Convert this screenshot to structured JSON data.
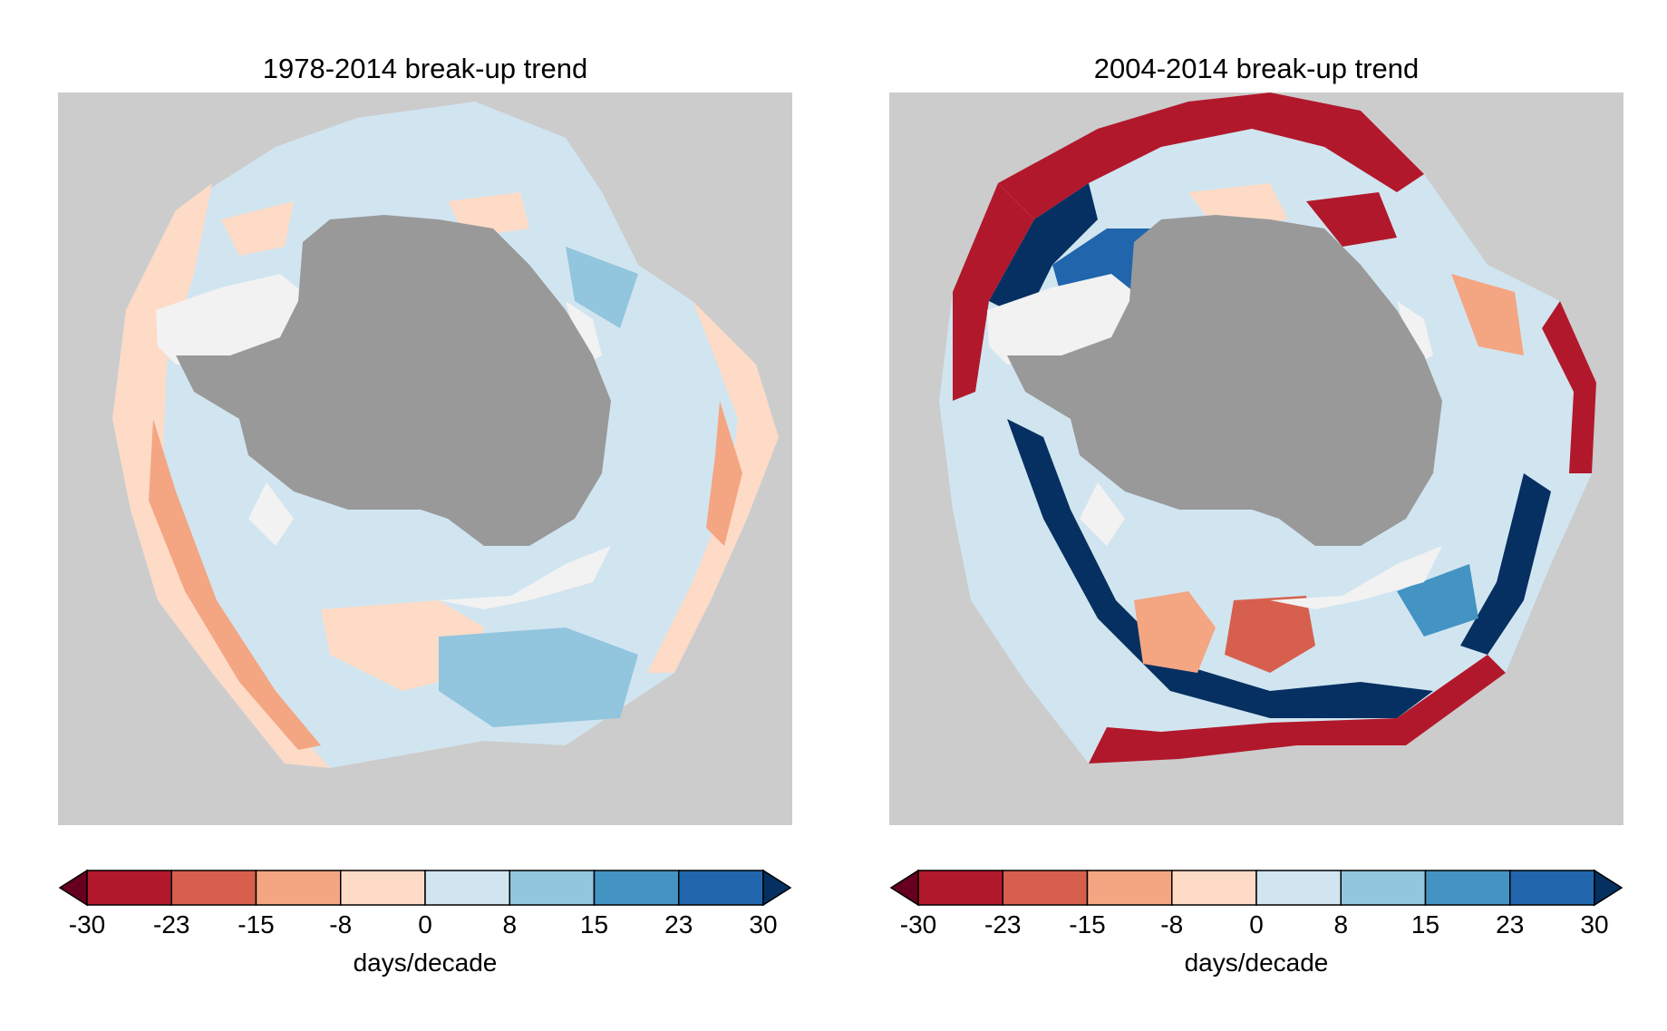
{
  "colorbar": {
    "ticks": [
      "-30",
      "-23",
      "-15",
      "-8",
      "0",
      "8",
      "15",
      "23",
      "30"
    ],
    "unit": "days/decade",
    "colors": [
      "#67001f",
      "#b2182b",
      "#d6604d",
      "#f4a582",
      "#fddbc7",
      "#d1e5f0",
      "#92c5de",
      "#4393c3",
      "#2166ac",
      "#053061"
    ]
  },
  "maps": [
    {
      "title": "1978-2014 break-up trend"
    },
    {
      "title": "2004-2014 break-up trend"
    }
  ],
  "colors": {
    "ocean_background": "#cccccc",
    "antarctica": "#999999",
    "ice_shelf": "#f2f2f2"
  }
}
